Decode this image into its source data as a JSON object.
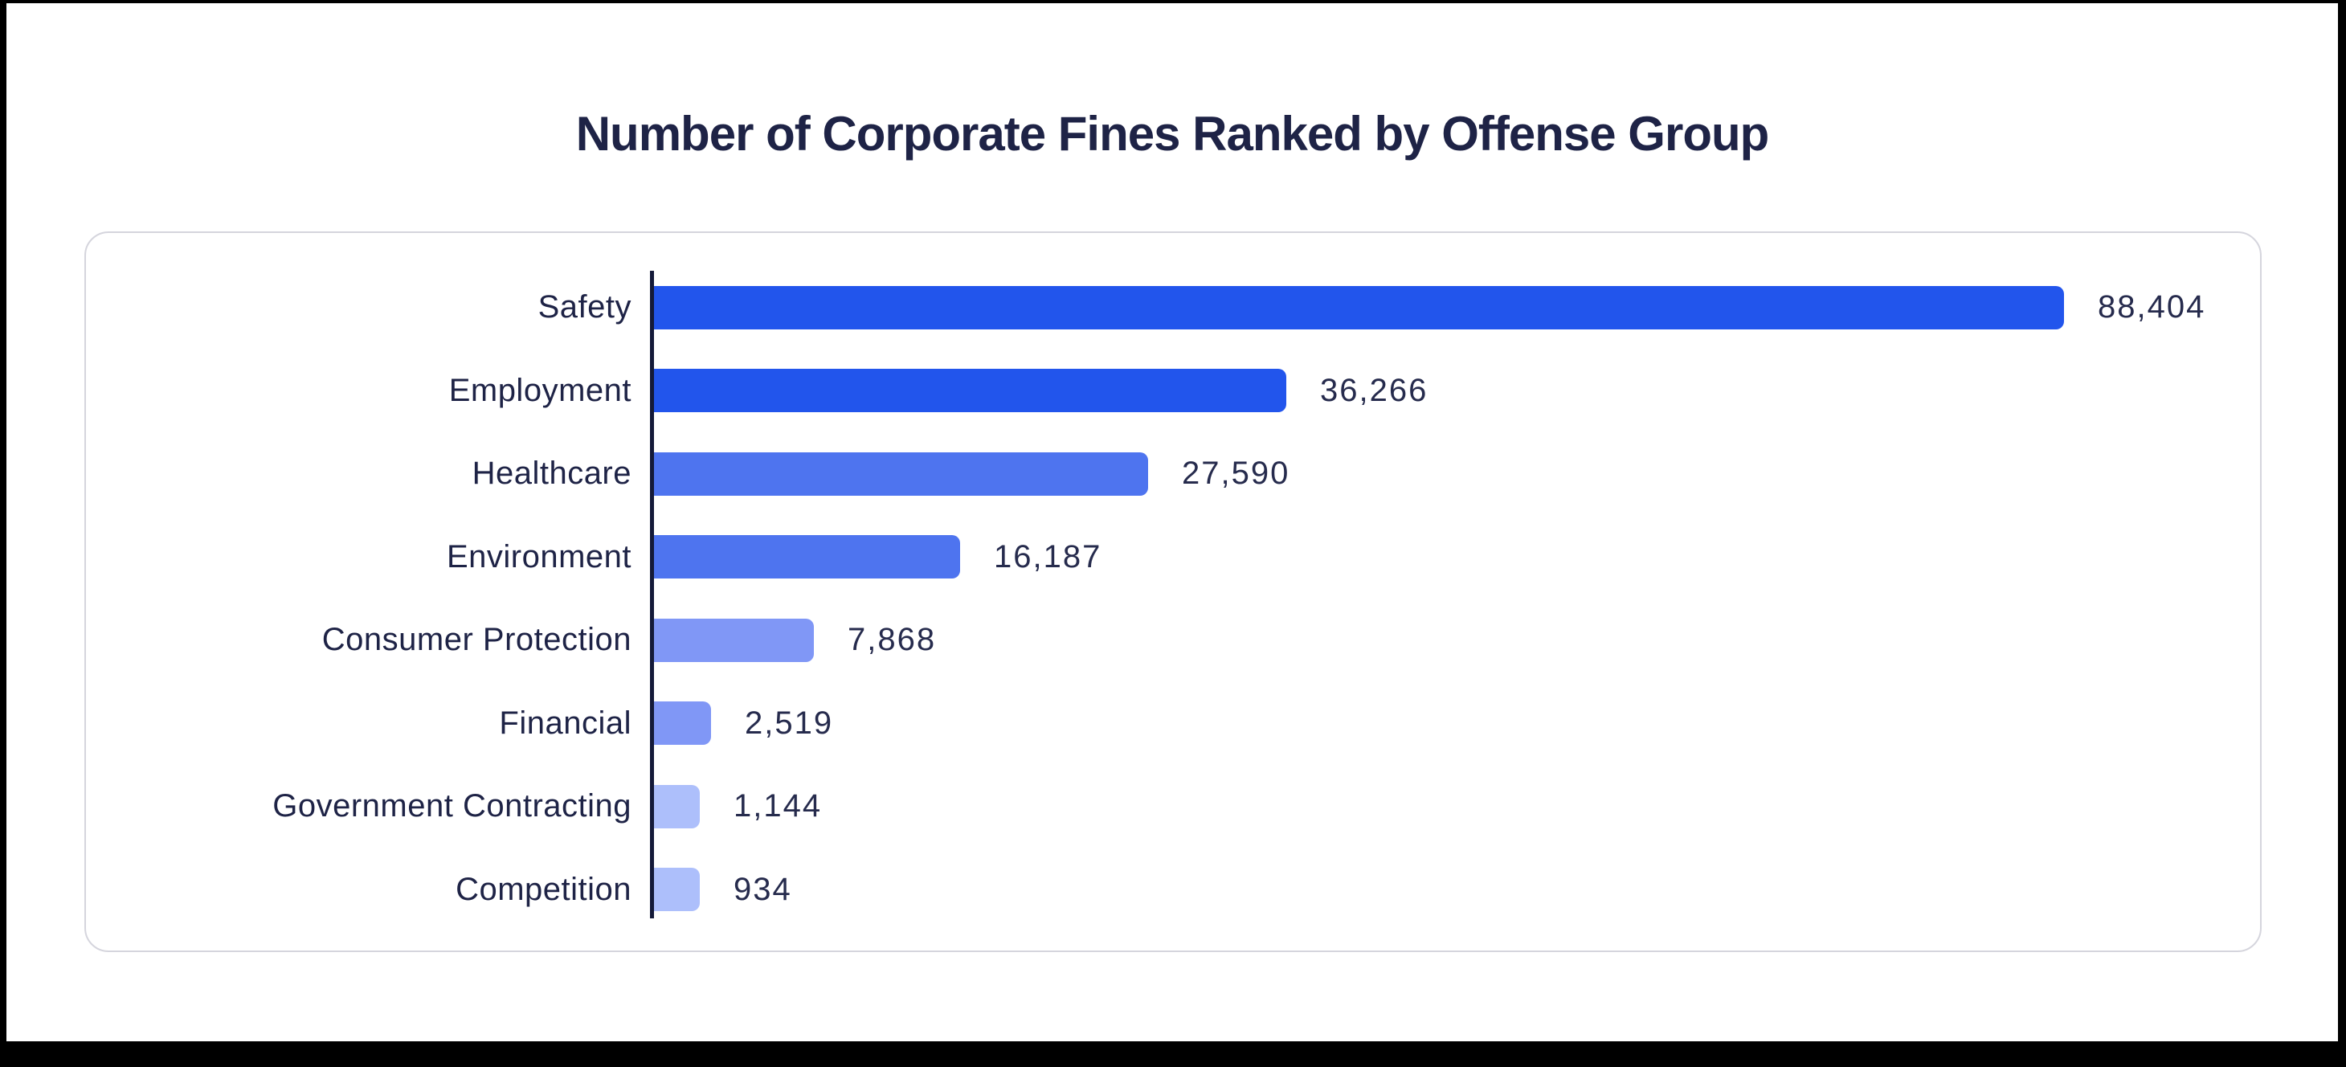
{
  "page": {
    "background": "#ffffff",
    "frame_color": "#000000",
    "card_border_color": "#d5d5dd",
    "title_color": "#1e2346",
    "axis_color": "#141a39"
  },
  "chart_data": {
    "type": "bar",
    "orientation": "horizontal",
    "title": "Number of Corporate Fines Ranked by Offense Group",
    "categories": [
      "Safety",
      "Employment",
      "Healthcare",
      "Environment",
      "Consumer Protection",
      "Financial",
      "Government Contracting",
      "Competition"
    ],
    "values": [
      88404,
      36266,
      27590,
      16187,
      7868,
      2519,
      1144,
      934
    ],
    "value_labels": [
      "88,404",
      "36,266",
      "27,590",
      "16,187",
      "7,868",
      "2,519",
      "1,144",
      "934"
    ],
    "bar_colors": [
      "#2255ec",
      "#2255ec",
      "#4e74ef",
      "#4e74ef",
      "#8097f6",
      "#8097f6",
      "#adbffb",
      "#adbffb"
    ],
    "xlim": [
      0,
      88404
    ],
    "grid": false,
    "legend": false,
    "xlabel": "",
    "ylabel": ""
  }
}
